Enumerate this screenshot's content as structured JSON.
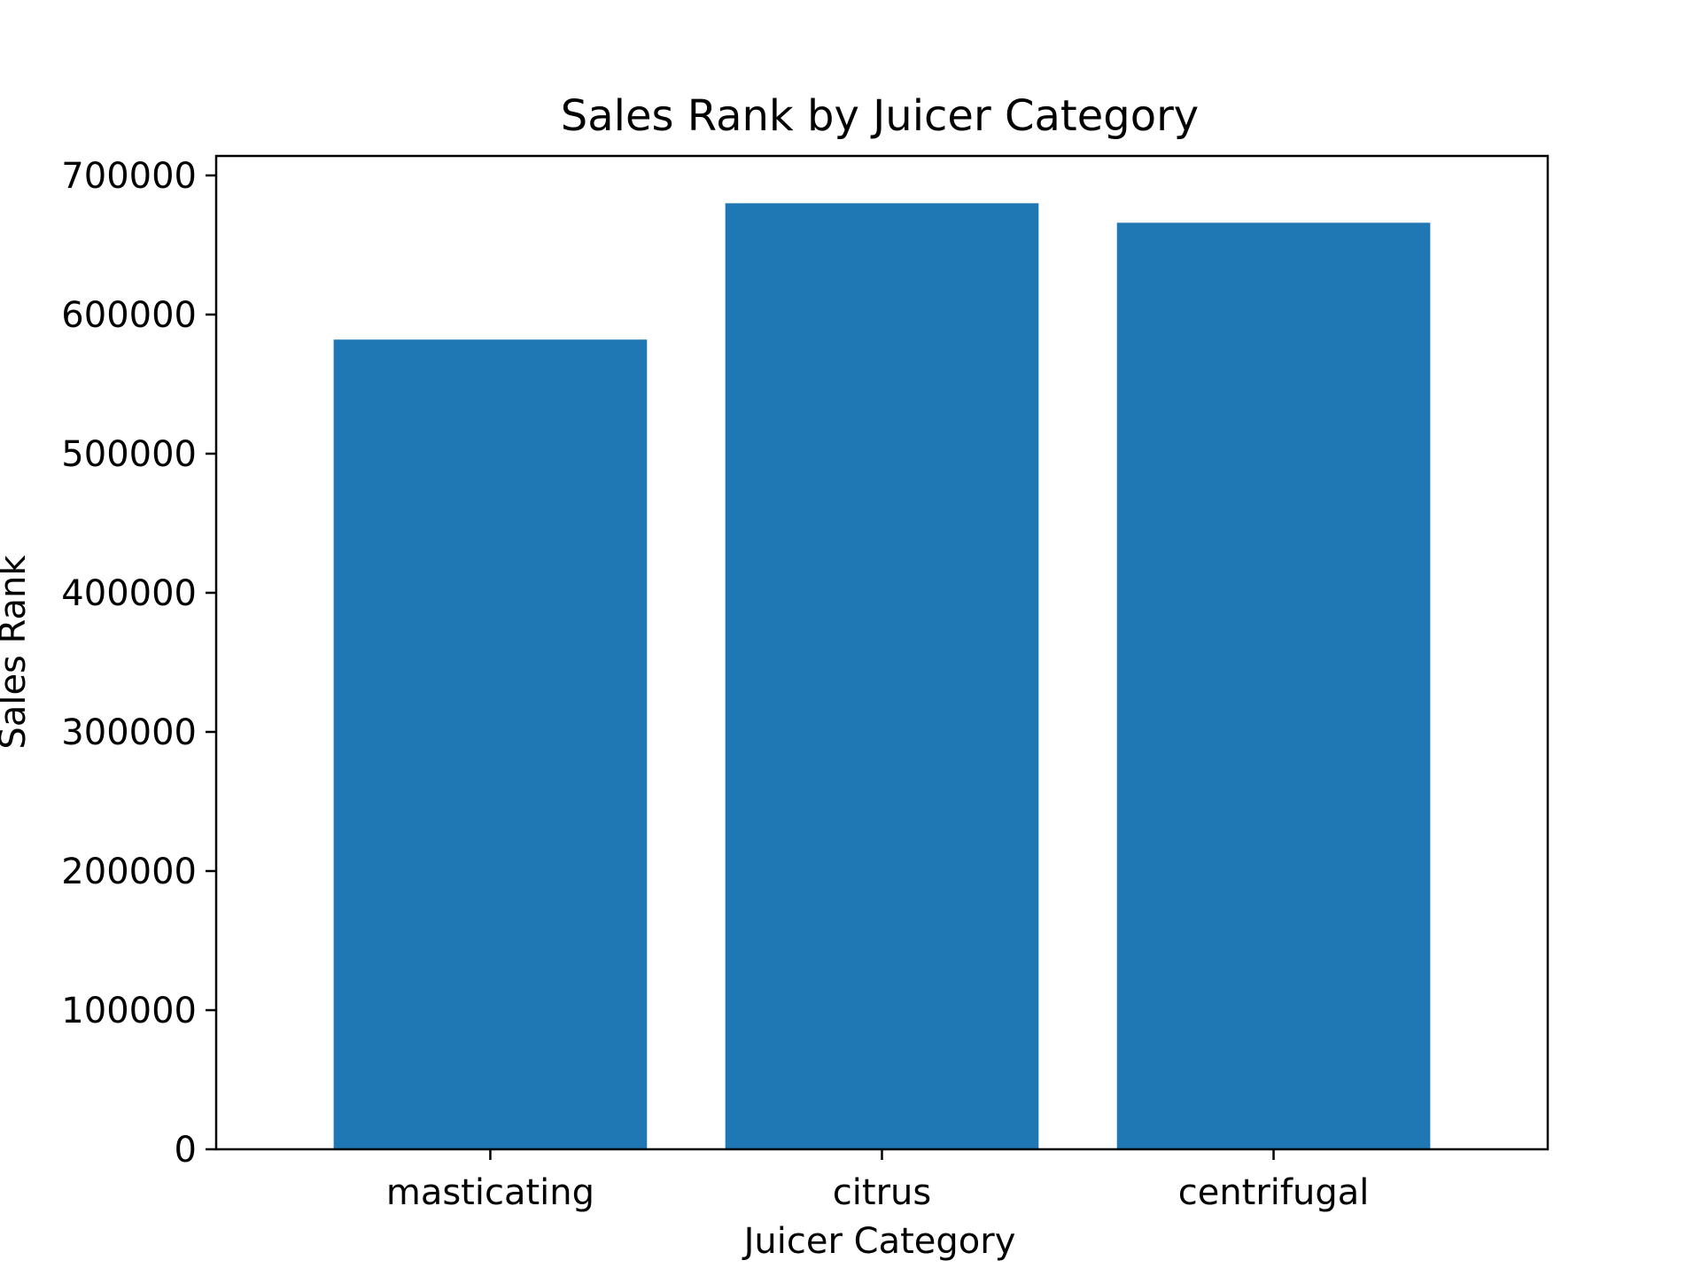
{
  "chart_data": {
    "type": "bar",
    "title": "Sales Rank by Juicer Category",
    "xlabel": "Juicer Category",
    "ylabel": "Sales Rank",
    "categories": [
      "masticating",
      "citrus",
      "centrifugal"
    ],
    "values": [
      582000,
      680000,
      666000
    ],
    "ylim": [
      0,
      714000
    ],
    "yticks": [
      0,
      100000,
      200000,
      300000,
      400000,
      500000,
      600000,
      700000
    ],
    "ytick_labels": [
      "0",
      "100000",
      "200000",
      "300000",
      "400000",
      "500000",
      "600000",
      "700000"
    ],
    "bar_color": "#1f77b4",
    "grid": false,
    "legend": "none"
  }
}
